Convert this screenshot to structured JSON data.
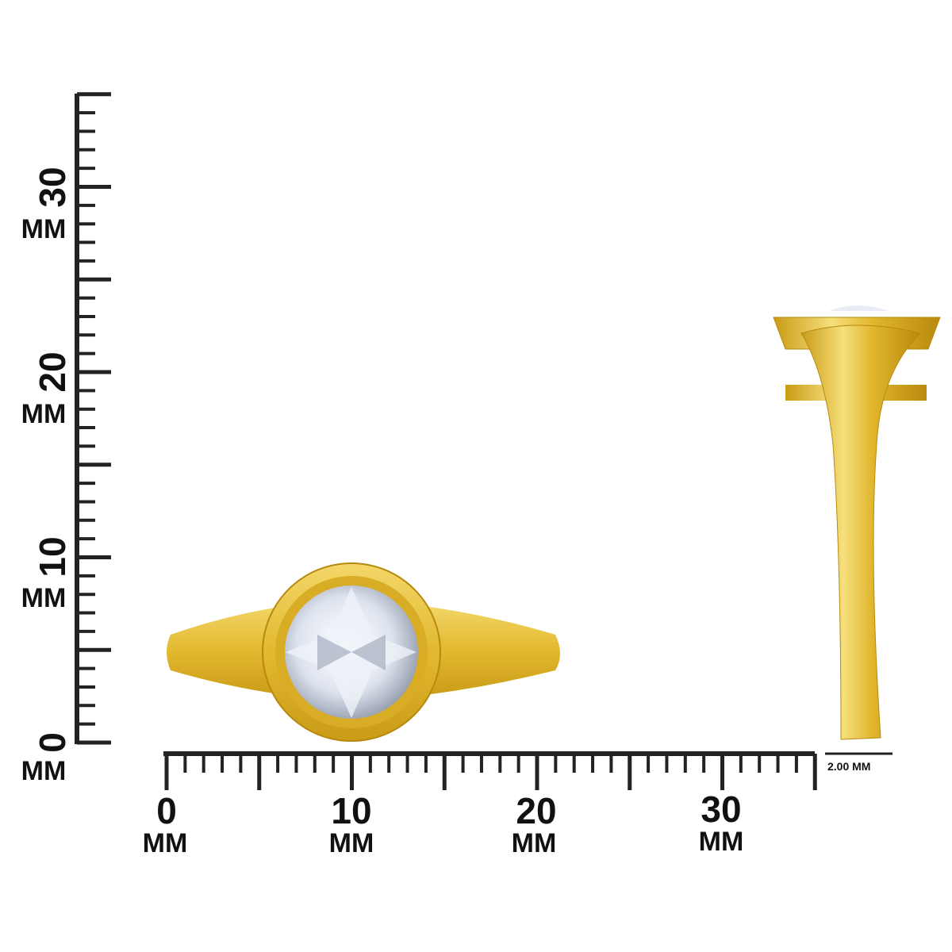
{
  "vertical_ruler": {
    "labels": [
      {
        "number": "0",
        "unit": "MM"
      },
      {
        "number": "10",
        "unit": "MM"
      },
      {
        "number": "20",
        "unit": "MM"
      },
      {
        "number": "30",
        "unit": "MM"
      }
    ]
  },
  "horizontal_ruler": {
    "labels": [
      {
        "number": "0",
        "unit": "MM"
      },
      {
        "number": "10",
        "unit": "MM"
      },
      {
        "number": "20",
        "unit": "MM"
      },
      {
        "number": "30",
        "unit": "MM"
      }
    ]
  },
  "scale_bar": {
    "label": "2.00 MM"
  }
}
